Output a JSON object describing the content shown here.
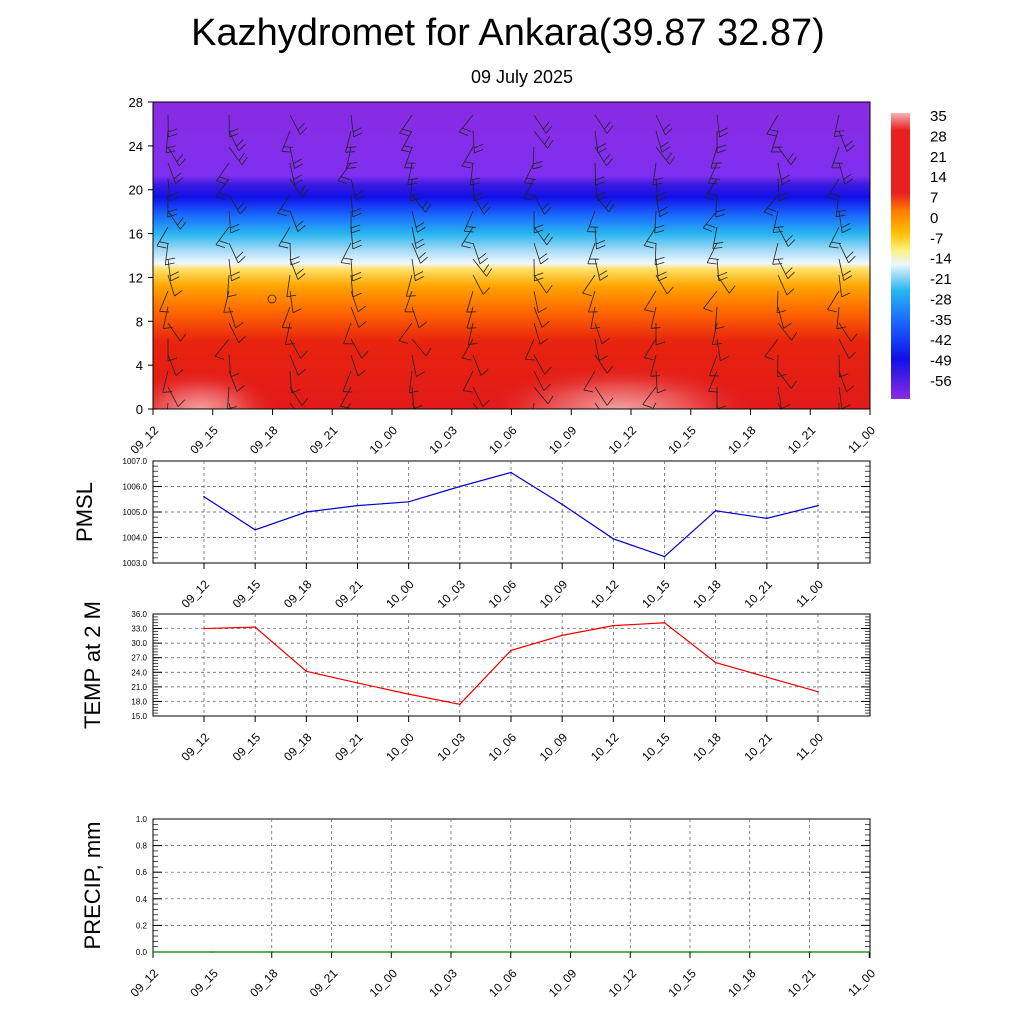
{
  "header": {
    "title": "Kazhydromet for Ankara(39.87 32.87)",
    "subtitle": "09 July 2025"
  },
  "time_labels": [
    "09_12",
    "09_15",
    "09_18",
    "09_21",
    "10_00",
    "10_03",
    "10_06",
    "10_09",
    "10_12",
    "10_15",
    "10_18",
    "10_21",
    "11_00"
  ],
  "chart_data": [
    {
      "type": "heatmap",
      "title": "",
      "xlabel": "",
      "ylabel": "",
      "x": [
        "09_12",
        "09_15",
        "09_18",
        "09_21",
        "10_00",
        "10_03",
        "10_06",
        "10_09",
        "10_12",
        "10_15",
        "10_18",
        "10_21",
        "11_00"
      ],
      "y_ticks": [
        0,
        4,
        8,
        12,
        16,
        20,
        24,
        28
      ],
      "ylim": [
        0,
        28
      ],
      "colorbar": {
        "labels": [
          "35",
          "28",
          "21",
          "14",
          "7",
          "0",
          "-7",
          "-14",
          "-21",
          "-28",
          "-35",
          "-42",
          "-49",
          "-56"
        ],
        "range": [
          -63,
          35
        ],
        "colors": {
          "warm": "#e01414",
          "hot": "#f28c8c",
          "orange": "#ff8c00",
          "yellow": "#ffe066",
          "light": "#d8eefa",
          "cyan": "#29b6f0",
          "blue": "#1a1aff",
          "violet": "#8a2be2"
        }
      },
      "description_levels": {
        "tropopause_level": 20,
        "freezing_level": 13
      },
      "has_wind_barbs": true
    },
    {
      "type": "line",
      "ylabel": "PMSL",
      "x": [
        "09_12",
        "09_15",
        "09_18",
        "09_21",
        "10_00",
        "10_03",
        "10_06",
        "10_09",
        "10_12",
        "10_15",
        "10_18",
        "10_21",
        "11_00"
      ],
      "series": [
        {
          "values": [
            1005.6,
            1004.3,
            1005.0,
            1005.25,
            1005.4,
            1006.0,
            1006.55,
            1005.3,
            1003.95,
            1003.25,
            1005.05,
            1004.75,
            1005.25
          ],
          "color": "#0000cc"
        }
      ],
      "ylim": [
        1003.0,
        1007.0
      ],
      "y_ticks": [
        "1003.0",
        "1004.0",
        "1005.0",
        "1006.0",
        "1007.0"
      ],
      "grid": true
    },
    {
      "type": "line",
      "ylabel": "TEMP at 2 M",
      "x": [
        "09_12",
        "09_15",
        "09_18",
        "09_21",
        "10_00",
        "10_03",
        "10_06",
        "10_09",
        "10_12",
        "10_15",
        "10_18",
        "10_21",
        "11_00"
      ],
      "series": [
        {
          "values": [
            33.0,
            33.3,
            24.2,
            21.8,
            19.5,
            17.4,
            28.5,
            31.6,
            33.6,
            34.2,
            26.0,
            23.0,
            20.0
          ],
          "color": "#ee0000"
        }
      ],
      "ylim": [
        15.0,
        36.0
      ],
      "y_ticks": [
        "15.0",
        "18.0",
        "21.0",
        "24.0",
        "27.0",
        "30.0",
        "33.0",
        "36.0"
      ],
      "grid": true
    },
    {
      "type": "line",
      "ylabel": "PRECIP, mm",
      "x": [
        "09_12",
        "09_15",
        "09_18",
        "09_21",
        "10_00",
        "10_03",
        "10_06",
        "10_09",
        "10_12",
        "10_15",
        "10_18",
        "10_21",
        "11_00"
      ],
      "series": [
        {
          "values": [
            0,
            0,
            0,
            0,
            0,
            0,
            0,
            0,
            0,
            0,
            0,
            0,
            0
          ],
          "color": "#007700"
        }
      ],
      "ylim": [
        0.0,
        1.0
      ],
      "y_ticks": [
        "0.0",
        "0.2",
        "0.4",
        "0.6",
        "0.8",
        "1.0"
      ],
      "grid": true
    }
  ]
}
